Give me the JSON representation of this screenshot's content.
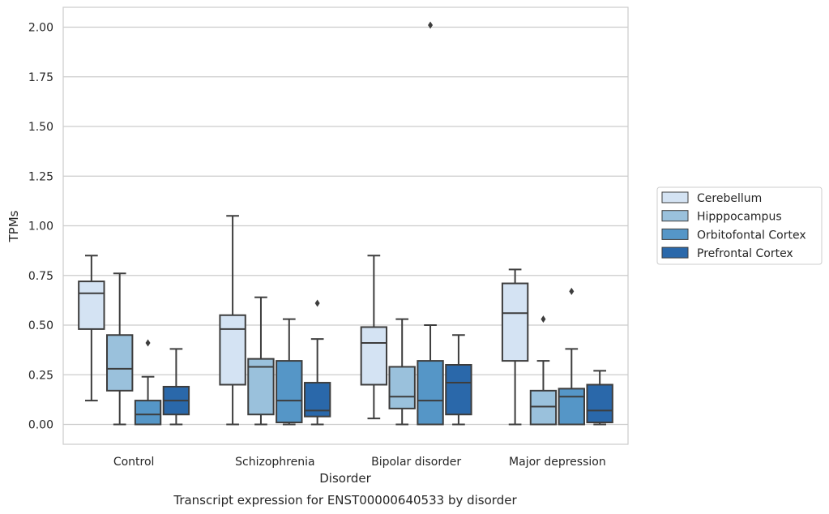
{
  "chart_data": {
    "type": "box",
    "title": "",
    "caption": "Transcript expression for ENST00000640533 by disorder",
    "xlabel": "Disorder",
    "ylabel": "TPMs",
    "ylim": [
      -0.1,
      2.1
    ],
    "yticks": [
      0.0,
      0.25,
      0.5,
      0.75,
      1.0,
      1.25,
      1.5,
      1.75,
      2.0
    ],
    "ytick_labels": [
      "0.00",
      "0.25",
      "0.50",
      "0.75",
      "1.00",
      "1.25",
      "1.50",
      "1.75",
      "2.00"
    ],
    "categories": [
      "Control",
      "Schizophrenia",
      "Bipolar disorder",
      "Major depression"
    ],
    "grid": "horizontal",
    "legend_position": "right",
    "series": [
      {
        "name": "Cerebellum",
        "color": "#d4e3f3",
        "boxes": [
          {
            "whislo": 0.12,
            "q1": 0.48,
            "med": 0.66,
            "q3": 0.72,
            "whishi": 0.85,
            "fliers": []
          },
          {
            "whislo": 0.0,
            "q1": 0.2,
            "med": 0.48,
            "q3": 0.55,
            "whishi": 1.05,
            "fliers": []
          },
          {
            "whislo": 0.03,
            "q1": 0.2,
            "med": 0.41,
            "q3": 0.49,
            "whishi": 0.85,
            "fliers": []
          },
          {
            "whislo": 0.0,
            "q1": 0.32,
            "med": 0.56,
            "q3": 0.71,
            "whishi": 0.78,
            "fliers": []
          }
        ]
      },
      {
        "name": "Hipppocampus",
        "color": "#9ac1dc",
        "boxes": [
          {
            "whislo": 0.0,
            "q1": 0.17,
            "med": 0.28,
            "q3": 0.45,
            "whishi": 0.76,
            "fliers": []
          },
          {
            "whislo": 0.0,
            "q1": 0.05,
            "med": 0.29,
            "q3": 0.33,
            "whishi": 0.64,
            "fliers": []
          },
          {
            "whislo": 0.0,
            "q1": 0.08,
            "med": 0.14,
            "q3": 0.29,
            "whishi": 0.53,
            "fliers": []
          },
          {
            "whislo": 0.0,
            "q1": 0.0,
            "med": 0.09,
            "q3": 0.17,
            "whishi": 0.32,
            "fliers": [
              0.53
            ]
          }
        ]
      },
      {
        "name": "Orbitofontal Cortex",
        "color": "#5596c7",
        "boxes": [
          {
            "whislo": 0.0,
            "q1": 0.0,
            "med": 0.05,
            "q3": 0.12,
            "whishi": 0.24,
            "fliers": [
              0.41
            ]
          },
          {
            "whislo": 0.0,
            "q1": 0.01,
            "med": 0.12,
            "q3": 0.32,
            "whishi": 0.53,
            "fliers": []
          },
          {
            "whislo": 0.0,
            "q1": 0.0,
            "med": 0.12,
            "q3": 0.32,
            "whishi": 0.5,
            "fliers": [
              2.01
            ]
          },
          {
            "whislo": 0.0,
            "q1": 0.0,
            "med": 0.14,
            "q3": 0.18,
            "whishi": 0.38,
            "fliers": [
              0.67
            ]
          }
        ]
      },
      {
        "name": "Prefrontal Cortex",
        "color": "#2a68aa",
        "boxes": [
          {
            "whislo": 0.0,
            "q1": 0.05,
            "med": 0.12,
            "q3": 0.19,
            "whishi": 0.38,
            "fliers": []
          },
          {
            "whislo": 0.0,
            "q1": 0.04,
            "med": 0.07,
            "q3": 0.21,
            "whishi": 0.43,
            "fliers": [
              0.61
            ]
          },
          {
            "whislo": 0.0,
            "q1": 0.05,
            "med": 0.21,
            "q3": 0.3,
            "whishi": 0.45,
            "fliers": []
          },
          {
            "whislo": 0.0,
            "q1": 0.01,
            "med": 0.07,
            "q3": 0.2,
            "whishi": 0.27,
            "fliers": []
          }
        ]
      }
    ]
  }
}
